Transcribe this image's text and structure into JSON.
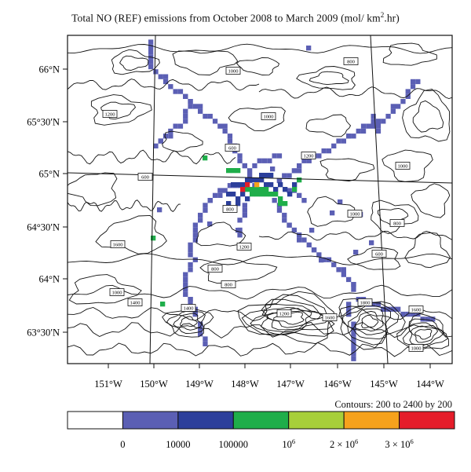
{
  "title_main": "Total NO (REF) emissions from October 2008 to March 2009 (mol/ km",
  "title_sup": "2",
  "title_end": ".hr)",
  "lat_labels": [
    "66°N",
    "65°30′N",
    "65°N",
    "64°30′N",
    "64°N",
    "63°30′N"
  ],
  "lon_labels": [
    "151°W",
    "150°W",
    "149°W",
    "148°W",
    "147°W",
    "146°W",
    "145°W",
    "144°W"
  ],
  "contours_text": "Contours: 200 to 2400 by 200",
  "colorbar": {
    "colors": [
      "#ffffff",
      "#5b5fb4",
      "#2c3f9b",
      "#1fae4a",
      "#a7cf3a",
      "#f6a21c",
      "#e51d2a"
    ],
    "tick_labels": [
      "0",
      "10000",
      "100000",
      "10",
      "2 × 10",
      "3 × 10"
    ],
    "tick_sups": [
      "",
      "",
      "",
      "6",
      "6",
      "6"
    ]
  },
  "contour_boxes": [
    "800",
    "1000",
    "1200",
    "1000",
    "600",
    "1200",
    "1000",
    "600",
    "800",
    "1000",
    "800",
    "1600",
    "1200",
    "600",
    "800",
    "1000",
    "1400",
    "1200",
    "800",
    "1600",
    "1800",
    "1600",
    "1400",
    "1000"
  ]
}
